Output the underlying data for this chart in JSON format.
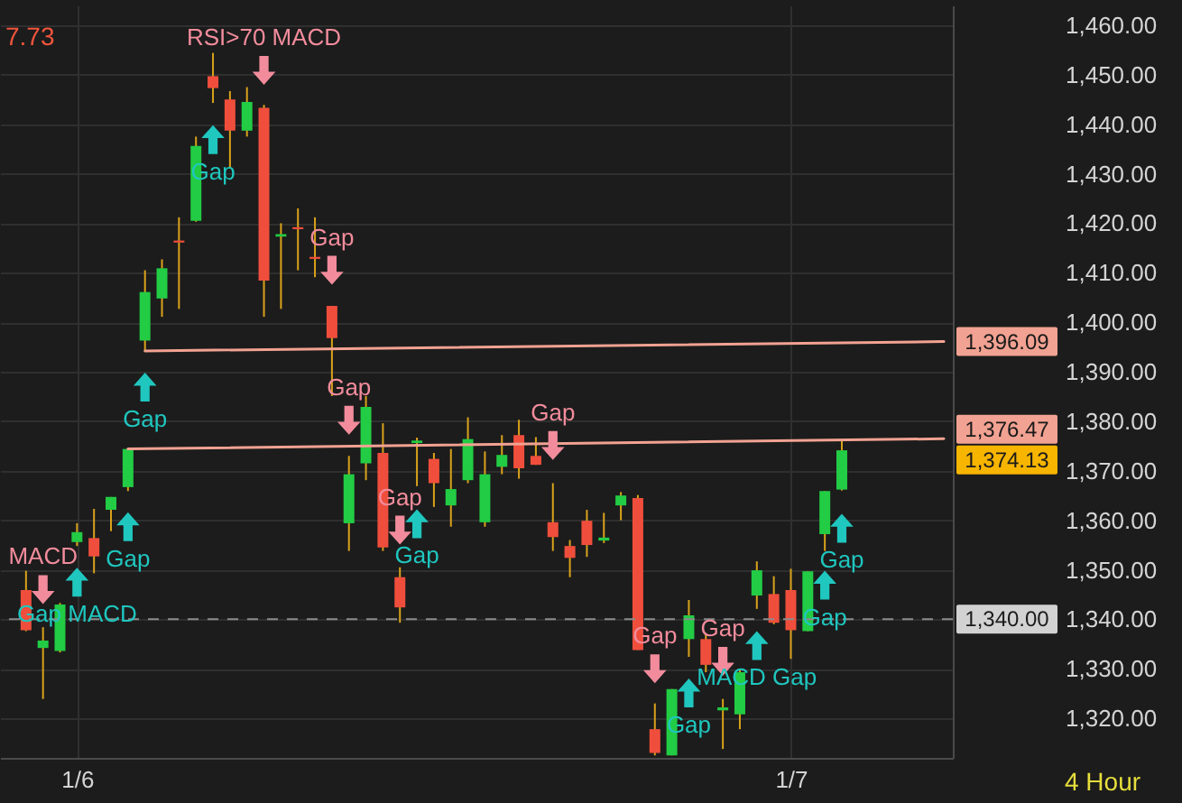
{
  "chart_data": {
    "type": "candlestick",
    "categories": [
      null,
      null,
      null,
      "1/6",
      null,
      null,
      null,
      null,
      null,
      null,
      null,
      null,
      null,
      null,
      null,
      null,
      null,
      null,
      null,
      null,
      null,
      null,
      null,
      null,
      null,
      null,
      null,
      null,
      null,
      null,
      null,
      null,
      null,
      null,
      null,
      null,
      null,
      null,
      null,
      null,
      null,
      null,
      null,
      null,
      null,
      "1/7",
      null,
      null,
      null,
      null,
      null,
      null,
      null,
      null,
      null
    ],
    "ohlc": [
      [
        1345.9,
        1349.8,
        1337.6,
        1337.8
      ],
      [
        1334.2,
        1338.4,
        1323.9,
        1335.7
      ],
      [
        1333.6,
        1343.3,
        1333.3,
        1343.0
      ],
      [
        1355.6,
        1359.4,
        1354.8,
        1357.6
      ],
      [
        1356.4,
        1362.3,
        1349.3,
        1352.7
      ],
      [
        1362.1,
        1364.7,
        1357.8,
        1364.7
      ],
      [
        1366.7,
        1374.4,
        1365.9,
        1374.4
      ],
      [
        1396.3,
        1410.5,
        1394.2,
        1406.1
      ],
      [
        1404.8,
        1412.7,
        1401.1,
        1410.9
      ],
      [
        1416.5,
        1421.2,
        1402.7,
        1416.1
      ],
      [
        1420.5,
        1437.5,
        1420.3,
        1435.6
      ],
      [
        1449.7,
        1454.4,
        1444.3,
        1447.3
      ],
      [
        1445.0,
        1446.7,
        1431.2,
        1438.7
      ],
      [
        1438.7,
        1447.5,
        1437.5,
        1444.5
      ],
      [
        1443.3,
        1443.9,
        1401.1,
        1408.4
      ],
      [
        1417.3,
        1420.0,
        1402.7,
        1417.8
      ],
      [
        1419.2,
        1423.0,
        1410.5,
        1418.8
      ],
      [
        1413.2,
        1421.2,
        1409.1,
        1412.8
      ],
      [
        1403.3,
        1403.3,
        1385.1,
        1396.8
      ],
      [
        1359.4,
        1373.0,
        1353.8,
        1369.3
      ],
      [
        1371.5,
        1385.1,
        1368.1,
        1382.9
      ],
      [
        1373.6,
        1379.6,
        1353.8,
        1354.5
      ],
      [
        1348.5,
        1350.5,
        1339.3,
        1342.4
      ],
      [
        1375.6,
        1376.7,
        1366.9,
        1376.1
      ],
      [
        1372.4,
        1373.6,
        1362.7,
        1367.5
      ],
      [
        1363.0,
        1374.4,
        1358.7,
        1366.3
      ],
      [
        1368.1,
        1380.8,
        1367.5,
        1376.4
      ],
      [
        1359.6,
        1373.9,
        1358.7,
        1369.3
      ],
      [
        1370.8,
        1377.2,
        1369.3,
        1373.2
      ],
      [
        1377.2,
        1380.3,
        1368.4,
        1370.5
      ],
      [
        1373.0,
        1376.8,
        1371.2,
        1371.2
      ],
      [
        1359.6,
        1367.5,
        1353.8,
        1356.6
      ],
      [
        1354.8,
        1356.0,
        1348.5,
        1352.4
      ],
      [
        1359.9,
        1362.1,
        1352.6,
        1355.0
      ],
      [
        1355.9,
        1361.5,
        1355.4,
        1356.5
      ],
      [
        1363.0,
        1365.7,
        1360.0,
        1365.0
      ],
      [
        1364.5,
        1365.1,
        1333.8,
        1333.8
      ],
      [
        1317.8,
        1323.0,
        1312.5,
        1313.0
      ],
      [
        1312.5,
        1325.9,
        1312.5,
        1325.9
      ],
      [
        1336.0,
        1343.9,
        1332.4,
        1340.8
      ],
      [
        1336.0,
        1337.2,
        1329.3,
        1330.8
      ],
      [
        1321.6,
        1323.9,
        1313.8,
        1322.2
      ],
      [
        1320.8,
        1329.9,
        1317.8,
        1329.3
      ],
      [
        1344.8,
        1351.7,
        1342.1,
        1349.9
      ],
      [
        1345.1,
        1348.7,
        1339.0,
        1339.3
      ],
      [
        1345.9,
        1350.2,
        1332.0,
        1337.8
      ],
      [
        1337.6,
        1349.7,
        1337.6,
        1349.7
      ],
      [
        1357.2,
        1365.9,
        1353.8,
        1365.9
      ],
      [
        1366.2,
        1376.0,
        1366.0,
        1374.13
      ],
      null,
      null,
      null,
      null,
      null,
      null
    ],
    "colors": [
      "#f04e3c",
      "#22cc44",
      "#22cc44",
      "#22cc44",
      "#f04e3c",
      "#22cc44",
      "#22cc44",
      "#22cc44",
      "#22cc44",
      "#f04e3c",
      "#22cc44",
      "#f04e3c",
      "#f04e3c",
      "#22cc44",
      "#f04e3c",
      "#22cc44",
      "#f04e3c",
      "#f04e3c",
      "#f04e3c",
      "#22cc44",
      "#22cc44",
      "#f04e3c",
      "#f04e3c",
      "#22cc44",
      "#f04e3c",
      "#22cc44",
      "#22cc44",
      "#22cc44",
      "#22cc44",
      "#f04e3c",
      "#f04e3c",
      "#f04e3c",
      "#f04e3c",
      "#f04e3c",
      "#22cc44",
      "#22cc44",
      "#f04e3c",
      "#f04e3c",
      "#22cc44",
      "#22cc44",
      "#f04e3c",
      "#22cc44",
      "#22cc44",
      "#22cc44",
      "#f04e3c",
      "#f04e3c",
      "#22cc44",
      "#22cc44",
      "#22cc44",
      null,
      null,
      null,
      null,
      null,
      null
    ],
    "ylim": [
      1312,
      1464
    ],
    "yticks": [
      {
        "value": 1320,
        "label": "1,320.00"
      },
      {
        "value": 1330,
        "label": "1,330.00"
      },
      {
        "value": 1340,
        "label": "1,340.00"
      },
      {
        "value": 1350,
        "label": "1,350.00"
      },
      {
        "value": 1360,
        "label": "1,360.00"
      },
      {
        "value": 1370,
        "label": "1,370.00"
      },
      {
        "value": 1380,
        "label": "1,380.00"
      },
      {
        "value": 1390,
        "label": "1,390.00"
      },
      {
        "value": 1400,
        "label": "1,400.00"
      },
      {
        "value": 1410,
        "label": "1,410.00"
      },
      {
        "value": 1420,
        "label": "1,420.00"
      },
      {
        "value": 1430,
        "label": "1,430.00"
      },
      {
        "value": 1440,
        "label": "1,440.00"
      },
      {
        "value": 1450,
        "label": "1,450.00"
      },
      {
        "value": 1460,
        "label": "1,460.00"
      }
    ],
    "grid": true,
    "series": [
      {
        "type": "line",
        "color": "#f2a292",
        "values": [
          null,
          null,
          null,
          null,
          null,
          null,
          null,
          1394.2,
          null,
          null,
          null,
          null,
          null,
          null,
          null,
          null,
          null,
          null,
          null,
          null,
          null,
          null,
          null,
          null,
          null,
          null,
          null,
          null,
          null,
          null,
          null,
          null,
          null,
          null,
          null,
          null,
          null,
          null,
          null,
          null,
          null,
          null,
          null,
          null,
          null,
          null,
          null,
          null,
          null,
          null,
          null,
          null,
          null,
          null,
          1396.09
        ],
        "value_labels": [
          null,
          null,
          null,
          null,
          null,
          null,
          null,
          null,
          null,
          null,
          null,
          null,
          null,
          null,
          null,
          null,
          null,
          null,
          null,
          null,
          null,
          null,
          null,
          null,
          null,
          null,
          null,
          null,
          null,
          null,
          null,
          null,
          null,
          null,
          null,
          null,
          null,
          null,
          null,
          null,
          null,
          null,
          null,
          null,
          null,
          null,
          null,
          null,
          null,
          null,
          null,
          null,
          null,
          null,
          "1,396.09"
        ]
      },
      {
        "type": "line",
        "color": "#f2a292",
        "values": [
          null,
          null,
          null,
          null,
          null,
          null,
          1374.4,
          null,
          null,
          null,
          null,
          null,
          null,
          null,
          null,
          null,
          null,
          null,
          null,
          null,
          null,
          null,
          null,
          null,
          null,
          null,
          null,
          null,
          null,
          null,
          null,
          null,
          null,
          null,
          null,
          null,
          null,
          null,
          null,
          null,
          null,
          null,
          null,
          null,
          null,
          null,
          null,
          null,
          null,
          null,
          null,
          null,
          null,
          null,
          1376.47
        ],
        "value_labels": [
          null,
          null,
          null,
          null,
          null,
          null,
          null,
          null,
          null,
          null,
          null,
          null,
          null,
          null,
          null,
          null,
          null,
          null,
          null,
          null,
          null,
          null,
          null,
          null,
          null,
          null,
          null,
          null,
          null,
          null,
          null,
          null,
          null,
          null,
          null,
          null,
          null,
          null,
          null,
          null,
          null,
          null,
          null,
          null,
          null,
          null,
          null,
          null,
          null,
          null,
          null,
          null,
          null,
          null,
          "1,376.47"
        ]
      },
      {
        "type": "scatter",
        "color": "#f28c9c",
        "marker": "triangle",
        "values": [
          null,
          1346.0,
          null,
          null,
          null,
          null,
          null,
          null,
          null,
          null,
          null,
          null,
          null,
          null,
          1450.9,
          null,
          null,
          null,
          1410.5,
          1380.2,
          null,
          null,
          1358.0,
          null,
          null,
          null,
          null,
          null,
          null,
          null,
          null,
          1375.1,
          null,
          null,
          null,
          null,
          null,
          1330.0,
          null,
          null,
          null,
          1331.5,
          null,
          null,
          null,
          null,
          null,
          null,
          null,
          null,
          null,
          null,
          null,
          null,
          null
        ],
        "value_labels": [
          null,
          "MACD",
          null,
          null,
          null,
          null,
          null,
          null,
          null,
          null,
          null,
          null,
          null,
          null,
          "RSI>70 MACD",
          null,
          null,
          null,
          "Gap",
          "Gap",
          null,
          null,
          "Gap",
          null,
          null,
          null,
          null,
          null,
          null,
          null,
          null,
          "Gap",
          null,
          null,
          null,
          null,
          null,
          "Gap",
          null,
          null,
          null,
          "Gap",
          null,
          null,
          null,
          null,
          null,
          null,
          null,
          null,
          null,
          null,
          null,
          null,
          null
        ]
      },
      {
        "type": "scatter",
        "color": "#1fc7bf",
        "marker": "triangle",
        "values": [
          null,
          null,
          null,
          1347.5,
          null,
          null,
          1358.7,
          1386.9,
          null,
          null,
          null,
          1436.9,
          null,
          null,
          null,
          null,
          null,
          null,
          null,
          null,
          null,
          null,
          null,
          1359.3,
          null,
          null,
          null,
          null,
          null,
          null,
          null,
          null,
          null,
          null,
          null,
          null,
          null,
          null,
          null,
          1325.1,
          null,
          null,
          null,
          1334.7,
          null,
          null,
          null,
          1346.9,
          1358.4,
          null,
          null,
          null,
          null,
          null,
          null
        ],
        "value_labels": [
          null,
          null,
          null,
          "Gap MACD",
          null,
          null,
          "Gap",
          "Gap",
          null,
          null,
          null,
          "Gap",
          null,
          null,
          null,
          null,
          null,
          null,
          null,
          null,
          null,
          null,
          null,
          "Gap",
          null,
          null,
          null,
          null,
          null,
          null,
          null,
          null,
          null,
          null,
          null,
          null,
          null,
          null,
          null,
          "Gap",
          null,
          null,
          null,
          "MACD Gap",
          null,
          null,
          null,
          "Gap",
          "Gap",
          null,
          null,
          null,
          null,
          null,
          null
        ]
      }
    ],
    "ref_lines": [
      {
        "axis": "y",
        "value": 1340,
        "label": "1,340.00",
        "color": "#8c8c8c",
        "line_style": "dashed"
      }
    ],
    "annotations": [
      "7.73",
      "4 Hour",
      "1,374.13"
    ]
  }
}
